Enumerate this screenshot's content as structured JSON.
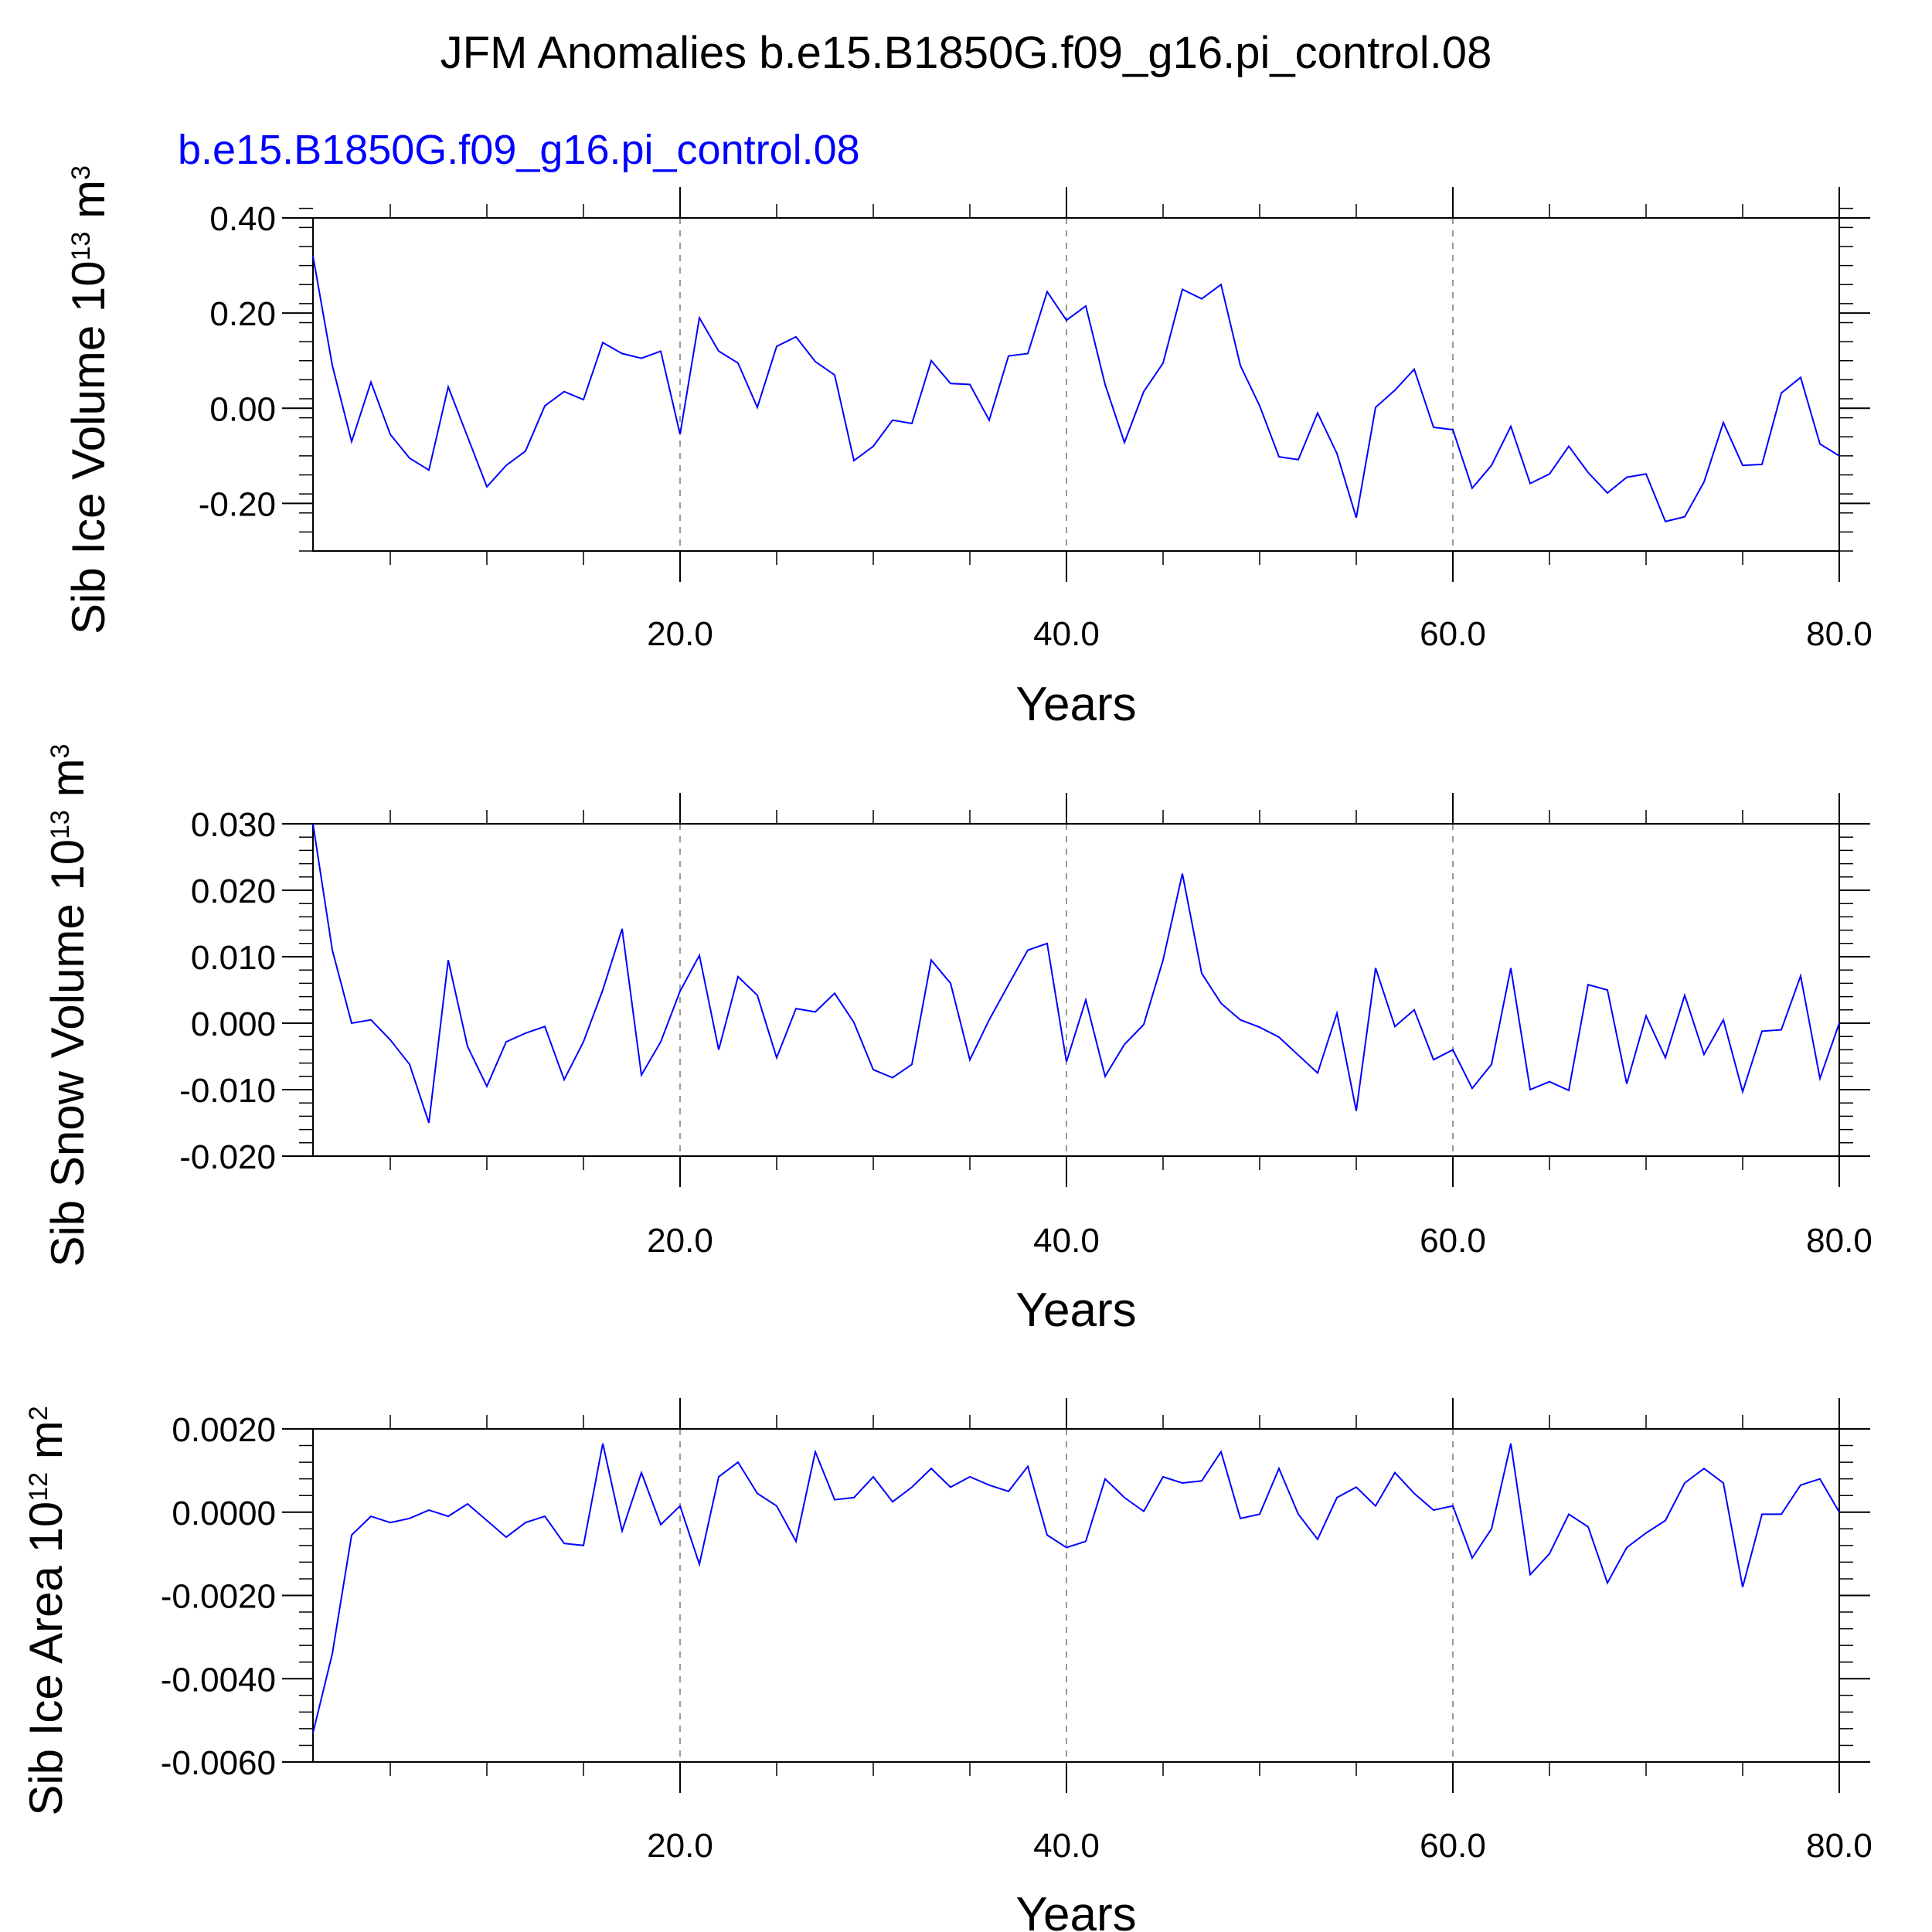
{
  "figure": {
    "title": "JFM Anomalies b.e15.B1850G.f09_g16.pi_control.08",
    "subtitle": "b.e15.B1850G.f09_g16.pi_control.08",
    "line_color": "#0000ff",
    "grid_color": "#999999"
  },
  "chart_data": [
    {
      "type": "line",
      "title": "",
      "ylabel": "Sib Ice Volume 10",
      "ylabel_exp": "13",
      "ylabel_unit": " m",
      "ylabel_unit_exp": "3",
      "xlabel": "Years",
      "xlim": [
        1,
        80
      ],
      "ylim": [
        -0.3,
        0.4
      ],
      "yticks": [
        0.4,
        0.2,
        0.0,
        -0.2
      ],
      "ytick_labels": [
        "0.40",
        "0.20",
        "0.00",
        "-0.20"
      ],
      "ytick_minor_step": 0.04,
      "xticks": [
        20,
        40,
        60,
        80
      ],
      "xtick_labels": [
        "20.0",
        "40.0",
        "60.0",
        "80.0"
      ],
      "grid_x": [
        20,
        40,
        60
      ],
      "grid": true,
      "x_start": 1,
      "x_step": 1,
      "values": [
        0.32,
        0.09,
        -0.07,
        0.055,
        -0.055,
        -0.105,
        -0.13,
        0.045,
        -0.06,
        -0.165,
        -0.12,
        -0.09,
        0.005,
        0.035,
        0.018,
        0.138,
        0.115,
        0.105,
        0.12,
        -0.055,
        0.19,
        0.12,
        0.095,
        0.002,
        0.13,
        0.15,
        0.098,
        0.07,
        -0.11,
        -0.08,
        -0.025,
        -0.032,
        0.1,
        0.052,
        0.05,
        -0.025,
        0.11,
        0.115,
        0.245,
        0.185,
        0.215,
        0.05,
        -0.072,
        0.035,
        0.095,
        0.25,
        0.23,
        0.26,
        0.09,
        0.005,
        -0.102,
        -0.108,
        -0.01,
        -0.095,
        -0.23,
        0.002,
        0.038,
        0.082,
        -0.04,
        -0.045,
        -0.168,
        -0.12,
        -0.038,
        -0.158,
        -0.138,
        -0.08,
        -0.135,
        -0.178,
        -0.145,
        -0.138,
        -0.238,
        -0.228,
        -0.155,
        -0.03,
        -0.12,
        -0.118,
        0.032,
        0.065,
        -0.075,
        -0.1
      ]
    },
    {
      "type": "line",
      "title": "",
      "ylabel": "Sib Snow Volume 10",
      "ylabel_exp": "13",
      "ylabel_unit": " m",
      "ylabel_unit_exp": "3",
      "xlabel": "Years",
      "xlim": [
        1,
        80
      ],
      "ylim": [
        -0.02,
        0.03
      ],
      "yticks": [
        0.03,
        0.02,
        0.01,
        0.0,
        -0.01,
        -0.02
      ],
      "ytick_labels": [
        "0.030",
        "0.020",
        "0.010",
        "0.000",
        "-0.010",
        "-0.020"
      ],
      "ytick_minor_step": 0.002,
      "xticks": [
        20,
        40,
        60,
        80
      ],
      "xtick_labels": [
        "20.0",
        "40.0",
        "60.0",
        "80.0"
      ],
      "grid_x": [
        20,
        40,
        60
      ],
      "grid": true,
      "x_start": 1,
      "x_step": 1,
      "values": [
        0.03,
        0.011,
        0.0,
        0.0005,
        -0.0025,
        -0.0062,
        -0.015,
        0.0095,
        -0.0035,
        -0.0095,
        -0.0028,
        -0.0015,
        -0.0005,
        -0.0085,
        -0.0028,
        0.005,
        0.0142,
        -0.0078,
        -0.0028,
        0.0048,
        0.0102,
        -0.004,
        0.007,
        0.0042,
        -0.0052,
        0.0022,
        0.0017,
        0.0045,
        0.0001,
        -0.007,
        -0.0082,
        -0.0062,
        0.0095,
        0.006,
        -0.0055,
        0.0005,
        0.0058,
        0.011,
        0.012,
        -0.0058,
        0.0035,
        -0.008,
        -0.0032,
        -0.0002,
        0.0095,
        0.0225,
        0.0075,
        0.003,
        0.0005,
        -0.0006,
        -0.0021,
        -0.0048,
        -0.0075,
        0.0015,
        -0.0132,
        0.0083,
        -0.0005,
        0.002,
        -0.0055,
        -0.004,
        -0.0098,
        -0.0062,
        0.0083,
        -0.01,
        -0.0088,
        -0.0101,
        0.0058,
        0.005,
        -0.0091,
        0.0011,
        -0.0052,
        0.0042,
        -0.0047,
        0.0005,
        -0.0103,
        -0.0012,
        -0.001,
        0.0071,
        -0.0083,
        0.0
      ]
    },
    {
      "type": "line",
      "title": "",
      "ylabel": "Sib Ice Area 10",
      "ylabel_exp": "12",
      "ylabel_unit": " m",
      "ylabel_unit_exp": "2",
      "xlabel": "Years",
      "xlim": [
        1,
        80
      ],
      "ylim": [
        -0.006,
        0.002
      ],
      "yticks": [
        0.002,
        0.0,
        -0.002,
        -0.004,
        -0.006
      ],
      "ytick_labels": [
        "0.0020",
        "0.0000",
        "-0.0020",
        "-0.0040",
        "-0.0060"
      ],
      "ytick_minor_step": 0.0004,
      "xticks": [
        20,
        40,
        60,
        80
      ],
      "xtick_labels": [
        "20.0",
        "40.0",
        "60.0",
        "80.0"
      ],
      "grid_x": [
        20,
        40,
        60
      ],
      "grid": true,
      "x_start": 1,
      "x_step": 1,
      "values": [
        -0.0053,
        -0.0034,
        -0.00055,
        -0.0001,
        -0.00025,
        -0.00015,
        5e-05,
        -0.0001,
        0.0002,
        -0.0002,
        -0.0006,
        -0.00025,
        -0.0001,
        -0.00075,
        -0.0008,
        0.00165,
        -0.00045,
        0.00095,
        -0.0003,
        0.00015,
        -0.00125,
        0.00085,
        0.0012,
        0.00045,
        0.00015,
        -0.0007,
        0.00145,
        0.0003,
        0.00035,
        0.00085,
        0.00025,
        0.0006,
        0.00105,
        0.0006,
        0.00085,
        0.00065,
        0.0005,
        0.0011,
        -0.00055,
        -0.00085,
        -0.0007,
        0.0008,
        0.00035,
        2e-05,
        0.00085,
        0.0007,
        0.00075,
        0.00145,
        -0.00015,
        -5e-05,
        0.00105,
        -5e-05,
        -0.00065,
        0.00035,
        0.0006,
        0.00015,
        0.00095,
        0.00045,
        5e-05,
        0.00015,
        -0.0011,
        -0.0004,
        0.00165,
        -0.0015,
        -0.001,
        -5e-05,
        -0.00035,
        -0.0017,
        -0.00085,
        -0.0005,
        -0.0002,
        0.0007,
        0.00105,
        0.0007,
        -0.0018,
        -5e-05,
        -5e-05,
        0.00065,
        0.0008,
        0.0
      ]
    }
  ]
}
